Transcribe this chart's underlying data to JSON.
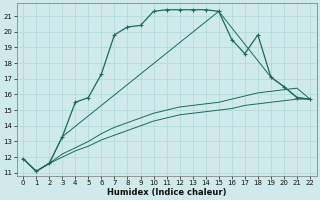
{
  "xlabel": "Humidex (Indice chaleur)",
  "bg_color": "#ceeaea",
  "grid_color": "#b0d8d8",
  "line_color": "#1a6b5a",
  "xlim": [
    -0.5,
    22.5
  ],
  "ylim": [
    10.8,
    21.8
  ],
  "yticks": [
    11,
    12,
    13,
    14,
    15,
    16,
    17,
    18,
    19,
    20,
    21
  ],
  "xticks": [
    0,
    1,
    2,
    3,
    4,
    5,
    6,
    7,
    8,
    9,
    10,
    11,
    12,
    13,
    14,
    15,
    16,
    17,
    18,
    19,
    20,
    21,
    22
  ],
  "main_x": [
    0,
    1,
    2,
    3,
    4,
    5,
    6,
    7,
    8,
    9,
    10,
    11,
    12,
    13,
    14,
    15,
    16,
    17,
    18,
    19,
    20,
    21,
    22
  ],
  "main_y": [
    11.9,
    11.1,
    11.6,
    13.3,
    15.5,
    15.8,
    17.3,
    19.8,
    20.3,
    20.4,
    21.3,
    21.4,
    21.4,
    21.4,
    21.4,
    21.3,
    19.5,
    18.6,
    19.8,
    17.1,
    16.5,
    15.8,
    15.7
  ],
  "line2_x": [
    0,
    1,
    2,
    3,
    4,
    5,
    6,
    7,
    8,
    9,
    10,
    11,
    12,
    13,
    14,
    15,
    16,
    17,
    18,
    19,
    20,
    21,
    22
  ],
  "line2_y": [
    11.9,
    11.1,
    11.6,
    12.0,
    12.4,
    12.7,
    13.1,
    13.4,
    13.7,
    14.0,
    14.3,
    14.5,
    14.7,
    14.8,
    14.9,
    15.0,
    15.1,
    15.3,
    15.4,
    15.5,
    15.6,
    15.7,
    15.7
  ],
  "line3_x": [
    0,
    1,
    2,
    3,
    4,
    5,
    6,
    7,
    8,
    9,
    10,
    11,
    12,
    13,
    14,
    15,
    16,
    17,
    18,
    19,
    20,
    21,
    22
  ],
  "line3_y": [
    11.9,
    11.1,
    11.6,
    12.2,
    12.6,
    13.0,
    13.5,
    13.9,
    14.2,
    14.5,
    14.8,
    15.0,
    15.2,
    15.3,
    15.4,
    15.5,
    15.7,
    15.9,
    16.1,
    16.2,
    16.3,
    16.4,
    15.7
  ],
  "line4_x": [
    0,
    1,
    2,
    3,
    15,
    19,
    20,
    21,
    22
  ],
  "line4_y": [
    11.9,
    11.1,
    11.6,
    13.3,
    21.3,
    17.1,
    16.5,
    15.8,
    15.7
  ]
}
